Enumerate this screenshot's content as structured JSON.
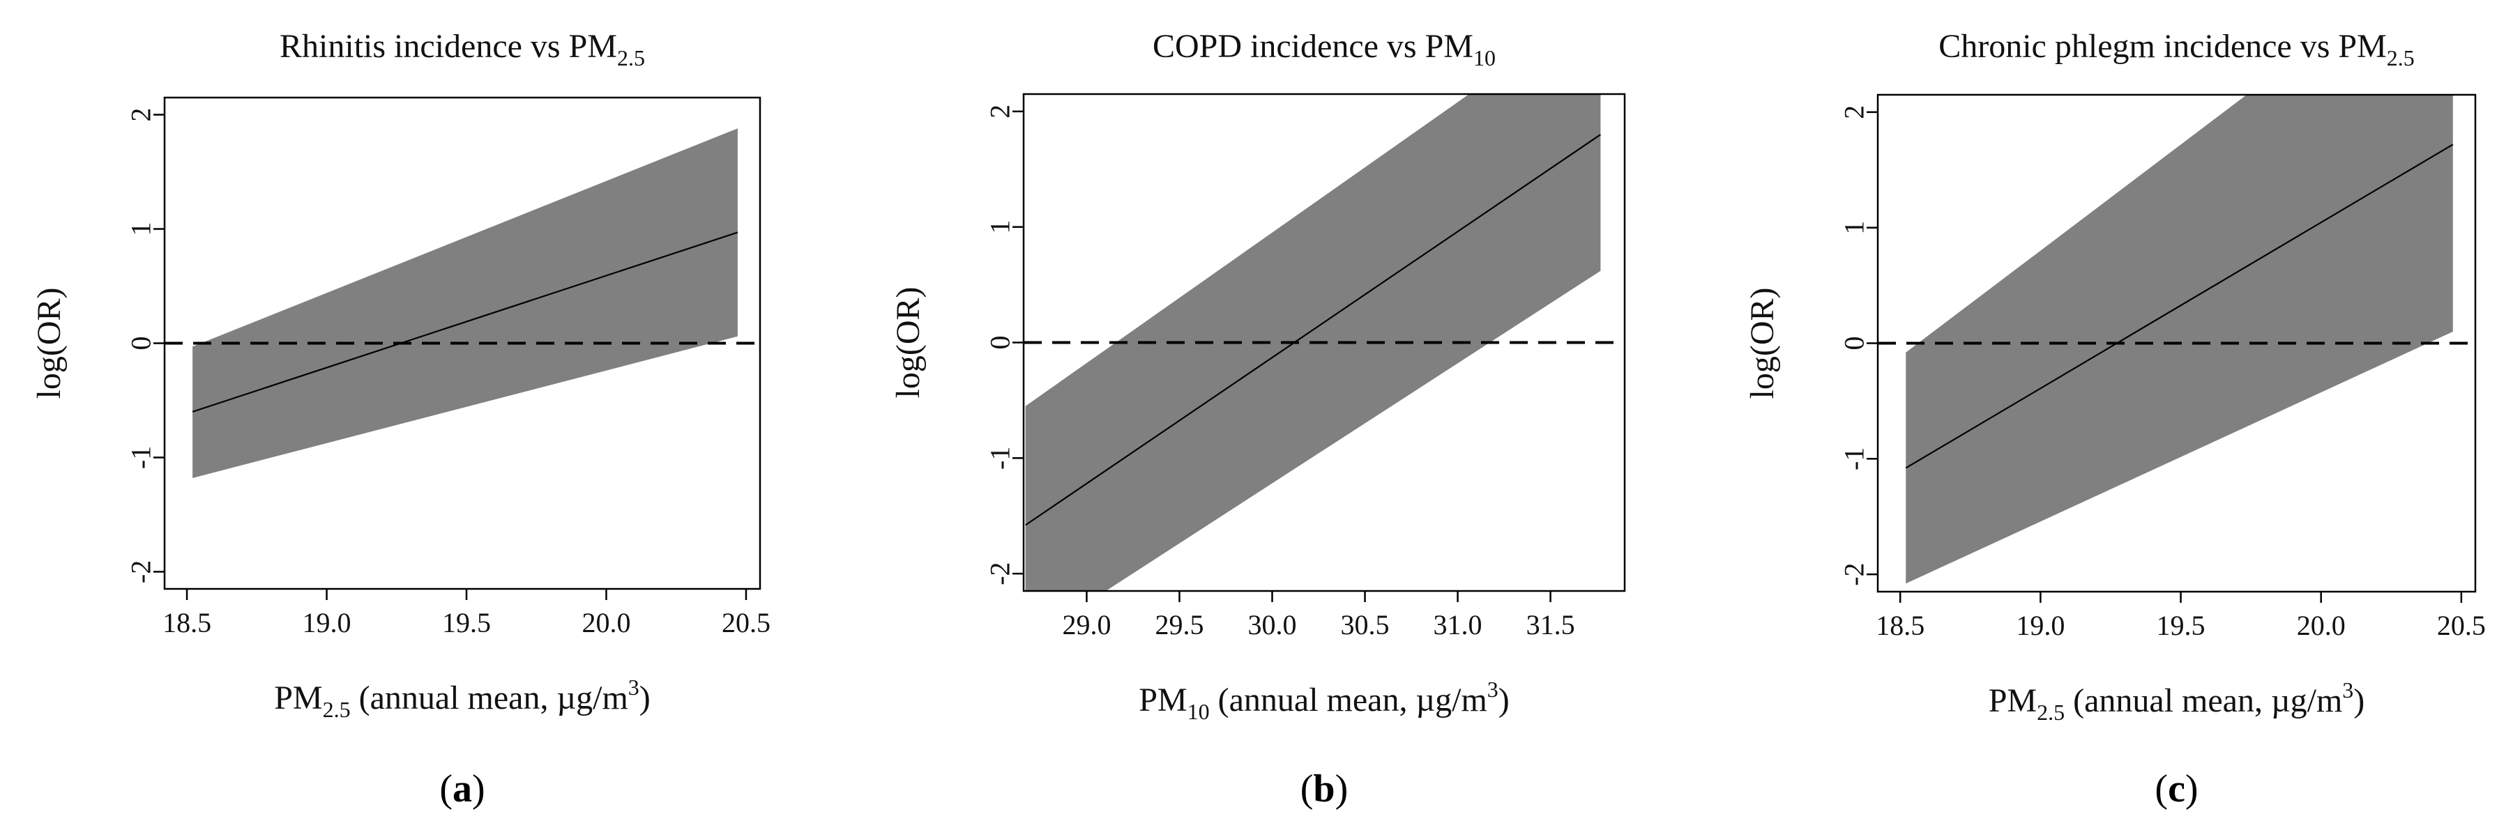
{
  "figure": {
    "panel_labels": [
      "a",
      "b",
      "c"
    ]
  },
  "colors": {
    "band": "#808080",
    "line": "#000000",
    "reference": "#000000",
    "axes": "#000000"
  },
  "chart_data": [
    {
      "type": "line",
      "panel": "a",
      "title": {
        "main": "Rhinitis incidence vs PM",
        "sub": "2.5"
      },
      "xlabel": {
        "pre": "PM",
        "sub": "2.5",
        "mid": " (annual mean, µg/m",
        "sup": "3",
        "post": ")"
      },
      "ylabel": "log(OR)",
      "xlim": [
        18.42,
        20.55
      ],
      "ylim": [
        -2.15,
        2.15
      ],
      "xticks": [
        18.5,
        19.0,
        19.5,
        20.0,
        20.5
      ],
      "xtick_labels": [
        "18.5",
        "19.0",
        "19.5",
        "20.0",
        "20.5"
      ],
      "yticks": [
        -2,
        -1,
        0,
        1,
        2
      ],
      "ytick_labels": [
        "-2",
        "-1",
        "0",
        "1",
        "2"
      ],
      "reference_line": 0,
      "series": [
        {
          "name": "log(OR) estimate",
          "x": [
            18.52,
            20.47
          ],
          "y": [
            -0.6,
            0.97
          ]
        },
        {
          "name": "95% CI upper",
          "x": [
            18.52,
            20.47
          ],
          "y": [
            -0.03,
            1.88
          ]
        },
        {
          "name": "95% CI lower",
          "x": [
            18.52,
            20.47
          ],
          "y": [
            -1.18,
            0.06
          ]
        }
      ]
    },
    {
      "type": "line",
      "panel": "b",
      "title": {
        "main": "COPD incidence vs PM",
        "sub": "10"
      },
      "xlabel": {
        "pre": "PM",
        "sub": "10",
        "mid": " (annual mean, µg/m",
        "sup": "3",
        "post": ")"
      },
      "ylabel": "log(OR)",
      "xlim": [
        28.66,
        31.9
      ],
      "ylim": [
        -2.15,
        2.15
      ],
      "xticks": [
        29.0,
        29.5,
        30.0,
        30.5,
        31.0,
        31.5
      ],
      "xtick_labels": [
        "29.0",
        "29.5",
        "30.0",
        "30.5",
        "31.0",
        "31.5"
      ],
      "yticks": [
        -2,
        -1,
        0,
        1,
        2
      ],
      "ytick_labels": [
        "-2",
        "-1",
        "0",
        "1",
        "2"
      ],
      "reference_line": 0,
      "series": [
        {
          "name": "log(OR) estimate",
          "x": [
            28.67,
            31.77
          ],
          "y": [
            -1.58,
            1.8
          ]
        },
        {
          "name": "95% CI upper",
          "x": [
            28.67,
            31.77
          ],
          "y": [
            -0.55,
            2.95
          ]
        },
        {
          "name": "95% CI lower",
          "x": [
            28.67,
            31.77
          ],
          "y": [
            -2.6,
            0.62
          ]
        }
      ]
    },
    {
      "type": "line",
      "panel": "c",
      "title": {
        "main": "Chronic phlegm incidence vs PM",
        "sub": "2.5"
      },
      "xlabel": {
        "pre": "PM",
        "sub": "2.5",
        "mid": " (annual mean, µg/m",
        "sup": "3",
        "post": ")"
      },
      "ylabel": "log(OR)",
      "xlim": [
        18.42,
        20.55
      ],
      "ylim": [
        -2.15,
        2.15
      ],
      "xticks": [
        18.5,
        19.0,
        19.5,
        20.0,
        20.5
      ],
      "xtick_labels": [
        "18.5",
        "19.0",
        "19.5",
        "20.0",
        "20.5"
      ],
      "yticks": [
        -2,
        -1,
        0,
        1,
        2
      ],
      "ytick_labels": [
        "-2",
        "-1",
        "0",
        "1",
        "2"
      ],
      "reference_line": 0,
      "series": [
        {
          "name": "log(OR) estimate",
          "x": [
            18.52,
            20.47
          ],
          "y": [
            -1.08,
            1.72
          ]
        },
        {
          "name": "95% CI upper",
          "x": [
            18.52,
            20.47
          ],
          "y": [
            -0.08,
            3.5
          ]
        },
        {
          "name": "95% CI lower",
          "x": [
            18.52,
            20.47
          ],
          "y": [
            -2.08,
            0.1
          ]
        }
      ]
    }
  ]
}
